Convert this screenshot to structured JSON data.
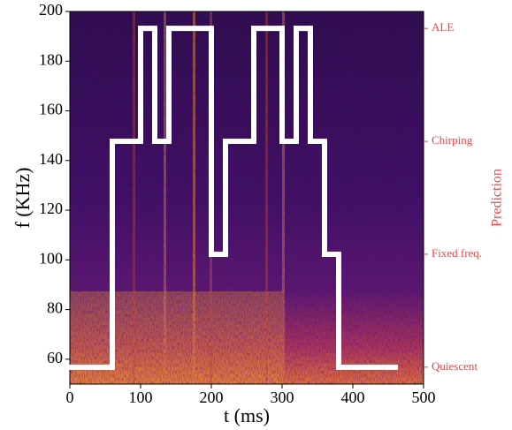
{
  "chart_data": {
    "type": "step",
    "x_label": "t (ms)",
    "y_label": "f (KHz)",
    "y2_label": "Prediction",
    "y2_color": "#e8474a",
    "xlim": [
      0,
      500
    ],
    "xticks": [
      0,
      100,
      200,
      300,
      400,
      500
    ],
    "ylim": [
      50,
      200
    ],
    "yticks": [
      60,
      80,
      100,
      120,
      140,
      160,
      180,
      200
    ],
    "y2lim": [
      -0.15,
      3.15
    ],
    "y2ticks": [
      {
        "value": 0,
        "label": "Quiescent"
      },
      {
        "value": 1,
        "label": "Fixed freq."
      },
      {
        "value": 2,
        "label": "Chirping"
      },
      {
        "value": 3,
        "label": "ALE"
      }
    ],
    "series": [
      {
        "color": "#ffffff",
        "axis": "y2",
        "x": [
          0,
          60,
          100,
          120,
          140,
          200,
          220,
          260,
          300,
          320,
          340,
          360,
          380,
          460
        ],
        "values": [
          0,
          2,
          3,
          2,
          3,
          1,
          2,
          3,
          2,
          3,
          2,
          1,
          0,
          0
        ]
      }
    ]
  }
}
